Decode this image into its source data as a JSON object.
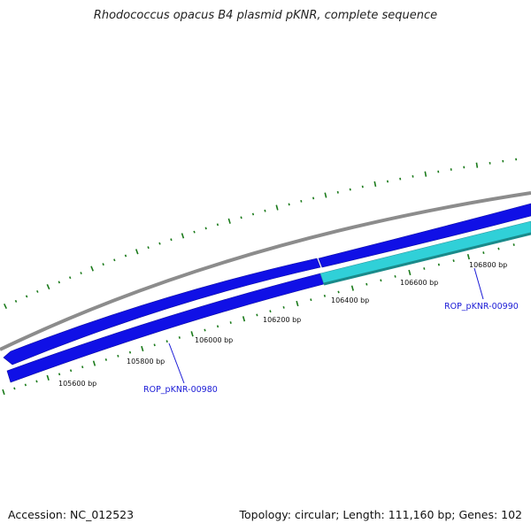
{
  "header": {
    "title": "Rhodococcus opacus B4 plasmid pKNR, complete sequence"
  },
  "footer": {
    "accession": "Accession: NC_012523",
    "summary": "Topology: circular; Length: 111,160 bp; Genes: 102"
  },
  "map": {
    "axis_ticks": [
      {
        "label": "105600 bp"
      },
      {
        "label": "105800 bp"
      },
      {
        "label": "106000 bp"
      },
      {
        "label": "106200 bp"
      },
      {
        "label": "106400 bp"
      },
      {
        "label": "106600 bp"
      },
      {
        "label": "106800 bp"
      }
    ],
    "genes": [
      {
        "label": "ROP_pKNR-00980",
        "color": "#1a1ad6"
      },
      {
        "label": "ROP_pKNR-00990",
        "color": "#1a1ad6"
      }
    ],
    "colors": {
      "backbone": "#8c8c8c",
      "cds_forward": "#1010e6",
      "cds_reverse_blue": "#1010e6",
      "cds_reverse_cyan": "#30d0d8",
      "tick": "#1a7a1a"
    }
  }
}
